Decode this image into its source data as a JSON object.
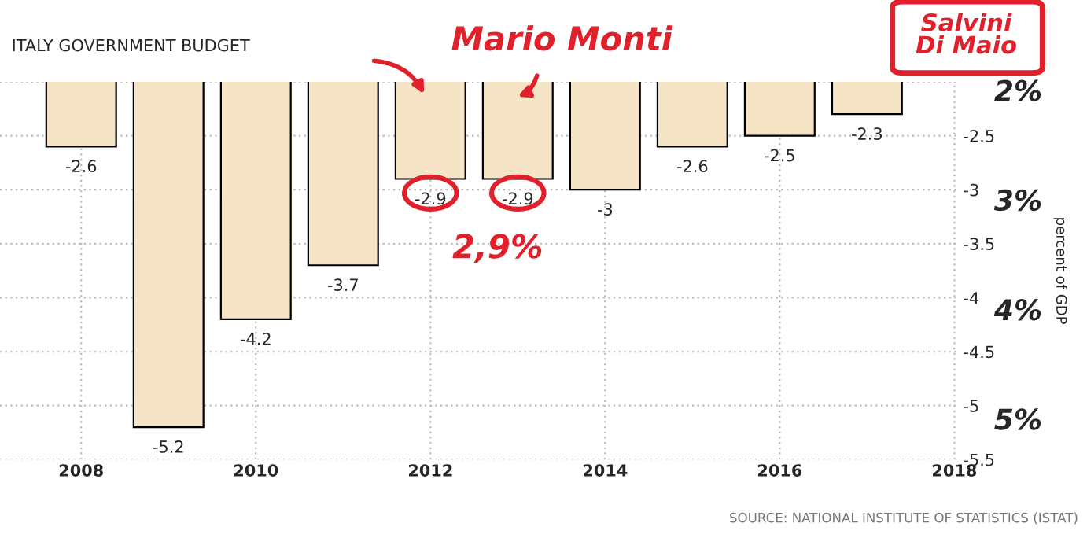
{
  "chart_data": {
    "type": "bar",
    "title": "ITALY GOVERNMENT BUDGET",
    "ylabel": "percent of GDP",
    "x": [
      2008,
      2009,
      2010,
      2011,
      2012,
      2013,
      2014,
      2015,
      2016,
      2017
    ],
    "values": [
      -2.6,
      -5.2,
      -4.2,
      -3.7,
      -2.9,
      -2.9,
      -3,
      -2.6,
      -2.5,
      -2.3
    ],
    "color": "#f6e4c6",
    "data_labels": true,
    "xlim": [
      2007.07,
      2018.05
    ],
    "xticks": [
      2008,
      2010,
      2012,
      2014,
      2016,
      2018
    ],
    "ylim": [
      -5.5,
      -2
    ],
    "yticks": [
      {
        "value": -2,
        "label": null
      },
      -2.5,
      -3,
      -3.5,
      -4,
      -4.5,
      -5,
      -5.5
    ],
    "grid": true,
    "annotations": [
      {
        "text": "Mario Monti"
      },
      {
        "text": "2,9%"
      },
      {
        "text": "Salvini\nDi Maio"
      },
      "2%",
      "3%",
      "4%",
      "5%",
      {
        "text": "SOURCE: NATIONAL INSTITUTE OF STATISTICS (ISTAT)"
      }
    ]
  }
}
